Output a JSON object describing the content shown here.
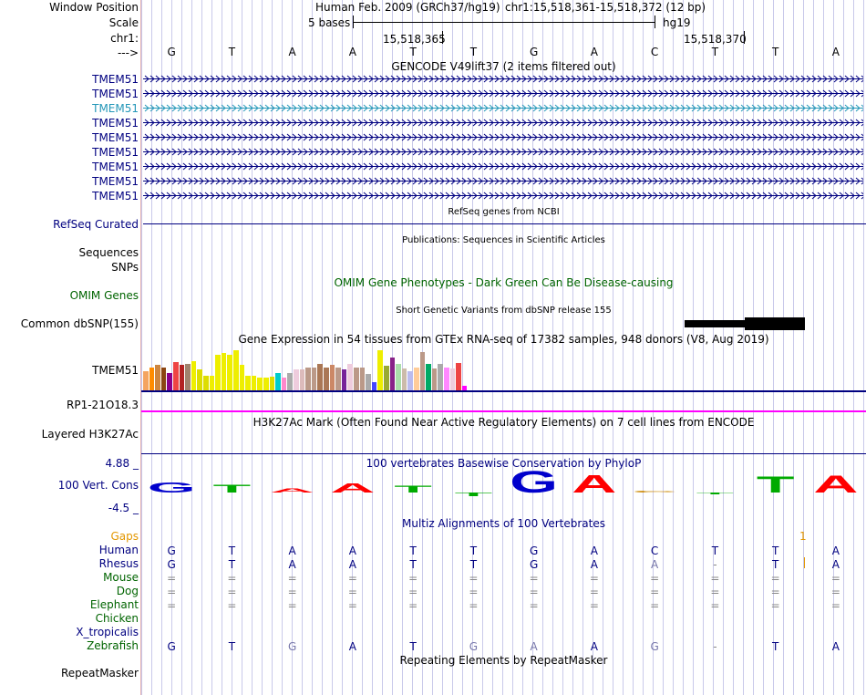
{
  "labels": {
    "window_position": "Window Position",
    "scale": "Scale",
    "chr": "chr1:",
    "strand": "--->",
    "gene_rows": [
      "TMEM51",
      "TMEM51",
      "TMEM51",
      "TMEM51",
      "TMEM51",
      "TMEM51",
      "TMEM51",
      "TMEM51",
      "TMEM51"
    ],
    "refseq": "RefSeq Curated",
    "sequences": "Sequences",
    "snps": "SNPs",
    "omim": "OMIM Genes",
    "common_dbsnp": "Common dbSNP(155)",
    "gtex_gene": "TMEM51",
    "rp1": "RP1-21O18.3",
    "layered": "Layered H3K27Ac",
    "cons_max": "4.88 _",
    "cons_label": "100 Vert. Cons",
    "cons_min": "-4.5 _",
    "gaps": "Gaps",
    "species": [
      "Human",
      "Rhesus",
      "Mouse",
      "Dog",
      "Elephant",
      "Chicken",
      "X_tropicalis",
      "Zebrafish"
    ],
    "repeatmasker": "RepeatMasker"
  },
  "header": {
    "assembly": "Human Feb. 2009 (GRCh37/hg19)",
    "position": "chr1:15,518,361-15,518,372 (12 bp)",
    "scale_text": "5 bases",
    "scale_db": "hg19",
    "coord1": "15,518,365",
    "coord2": "15,518,370"
  },
  "bases": [
    "G",
    "T",
    "A",
    "A",
    "T",
    "T",
    "G",
    "A",
    "C",
    "T",
    "T",
    "A"
  ],
  "track_titles": {
    "gencode": "GENCODE V49lift37 (2 items filtered out)",
    "refseq": "RefSeq genes from NCBI",
    "publications": "Publications: Sequences in Scientific Articles",
    "omim": "OMIM Gene Phenotypes - Dark Green Can Be Disease-causing",
    "dbsnp": "Short Genetic Variants from dbSNP release 155",
    "gtex": "Gene Expression in 54 tissues from GTEx RNA-seq of 17382 samples, 948 donors (V8, Aug 2019)",
    "h3k27ac": "H3K27Ac Mark (Often Found Near Active Regulatory Elements) on 7 cell lines from ENCODE",
    "phylop": "100 vertebrates Basewise Conservation by PhyloP",
    "multiz": "Multiz Alignments of 100 Vertebrates",
    "repeatmasker": "Repeating Elements by RepeatMasker"
  },
  "gaps_marker": "1",
  "alignment": {
    "human": [
      "G",
      "T",
      "A",
      "A",
      "T",
      "T",
      "G",
      "A",
      "C",
      "T",
      "T",
      "A"
    ],
    "rhesus": [
      "G",
      "T",
      "A",
      "A",
      "T",
      "T",
      "G",
      "A",
      "A",
      "-",
      "T",
      "A"
    ],
    "mouse": [
      "=",
      "=",
      "=",
      "=",
      "=",
      "=",
      "=",
      "=",
      "=",
      "=",
      "=",
      "="
    ],
    "dog": [
      "=",
      "=",
      "=",
      "=",
      "=",
      "=",
      "=",
      "=",
      "=",
      "=",
      "=",
      "="
    ],
    "elephant": [
      "=",
      "=",
      "=",
      "=",
      "=",
      "=",
      "=",
      "=",
      "=",
      "=",
      "=",
      "="
    ],
    "chicken": [
      "",
      "",
      "",
      "",
      "",
      "",
      "",
      "",
      "",
      "",
      "",
      ""
    ],
    "xtrop": [
      "",
      "",
      "",
      "",
      "",
      "",
      "",
      "",
      "",
      "",
      "",
      ""
    ],
    "zebrafish": [
      "G",
      "T",
      "G",
      "A",
      "T",
      "G",
      "A",
      "A",
      "G",
      "-",
      "T",
      "A"
    ]
  },
  "phylop_letters": [
    "G",
    "T",
    "A",
    "A",
    "T",
    "T",
    "G",
    "A",
    "C",
    "T",
    "T",
    "A"
  ],
  "phylop_scores": [
    1.2,
    0.9,
    0.5,
    1.1,
    0.8,
    -0.4,
    2.6,
    2.1,
    0.1,
    -0.2,
    1.9,
    2.0
  ],
  "gtex_values": [
    0.45,
    0.55,
    0.6,
    0.55,
    0.42,
    0.68,
    0.6,
    0.62,
    0.7,
    0.5,
    0.35,
    0.35,
    0.85,
    0.9,
    0.85,
    0.95,
    0.6,
    0.35,
    0.35,
    0.3,
    0.3,
    0.32,
    0.42,
    0.3,
    0.42,
    0.5,
    0.5,
    0.55,
    0.55,
    0.62,
    0.55,
    0.6,
    0.55,
    0.5,
    0.62,
    0.55,
    0.55,
    0.4,
    0.2,
    0.95,
    0.58,
    0.78,
    0.62,
    0.52,
    0.45,
    0.55,
    0.92,
    0.62,
    0.52,
    0.62,
    0.55,
    0.52,
    0.65,
    0.1
  ],
  "colors": {
    "label": "#000080",
    "gene": "#000080",
    "gene_highlight": "#2497b8",
    "omim": "#006400",
    "gaps": "#e39700",
    "rp1": "#ff00ff",
    "conserved_gray": "#7777aa"
  }
}
